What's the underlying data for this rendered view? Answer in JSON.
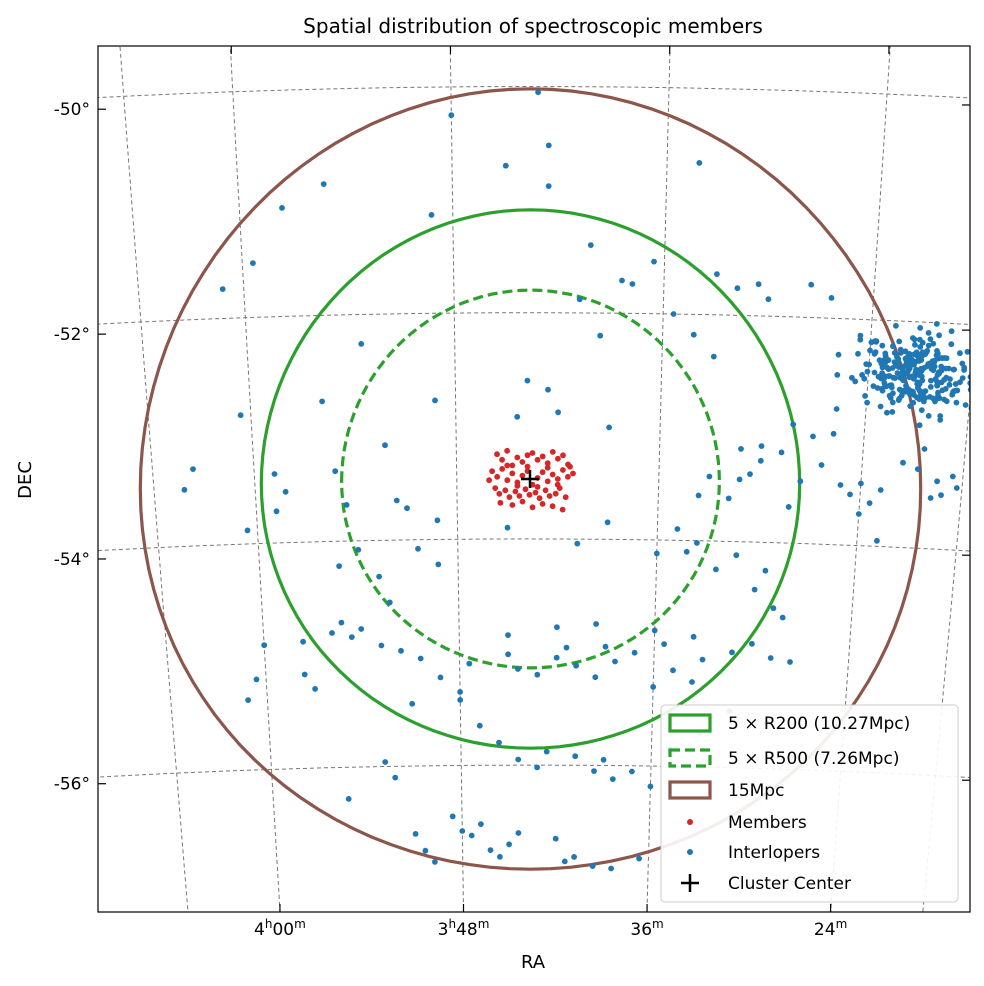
{
  "chart_data": {
    "type": "scatter",
    "title": "Spatial distribution of spectroscopic members",
    "xlabel": "RA",
    "ylabel": "DEC",
    "projection": "sky (RA/DEC, curved graticule)",
    "x_unit": "RA hours",
    "y_unit": "degrees",
    "xlim": [
      4.25,
      3.23
    ],
    "ylim": [
      -57.3,
      -49.8
    ],
    "grid": true,
    "legend_position": "lower-right",
    "x_ticks": [
      {
        "value": 4.0,
        "h": "4",
        "m": "00"
      },
      {
        "value": 3.8,
        "h": "3",
        "m": "48"
      },
      {
        "value": 3.6,
        "h": "",
        "m": "36"
      },
      {
        "value": 3.4,
        "h": "",
        "m": "24"
      }
    ],
    "y_ticks": [
      {
        "value": -50,
        "label": "-50°"
      },
      {
        "value": -52,
        "label": "-52°"
      },
      {
        "value": -54,
        "label": "-54°"
      },
      {
        "value": -56,
        "label": "-56°"
      }
    ],
    "cluster_center": {
      "name": "Cluster Center",
      "ra": 3.7275,
      "dec": -53.47,
      "color": "#000000"
    },
    "circles": [
      {
        "name": "5 × R200 (10.27Mpc)",
        "ra": 3.727,
        "dec": -53.47,
        "radius_deg": 2.38,
        "color": "#2ca02c",
        "style": "solid"
      },
      {
        "name": "5 × R500 (7.26Mpc)",
        "ra": 3.727,
        "dec": -53.47,
        "radius_deg": 1.67,
        "color": "#2ca02c",
        "style": "dashed"
      },
      {
        "name": "15Mpc",
        "ra": 3.727,
        "dec": -53.47,
        "radius_deg": 3.45,
        "color": "#8c564b",
        "style": "solid"
      }
    ],
    "series": [
      {
        "name": "Members",
        "color": "#d62728",
        "points": [
          [
            3.76,
            -53.25
          ],
          [
            3.755,
            -53.3
          ],
          [
            3.75,
            -53.22
          ],
          [
            3.745,
            -53.35
          ],
          [
            3.74,
            -53.28
          ],
          [
            3.735,
            -53.32
          ],
          [
            3.73,
            -53.26
          ],
          [
            3.725,
            -53.24
          ],
          [
            3.72,
            -53.3
          ],
          [
            3.715,
            -53.27
          ],
          [
            3.71,
            -53.33
          ],
          [
            3.705,
            -53.23
          ],
          [
            3.7,
            -53.29
          ],
          [
            3.695,
            -53.26
          ],
          [
            3.69,
            -53.34
          ],
          [
            3.765,
            -53.4
          ],
          [
            3.76,
            -53.45
          ],
          [
            3.755,
            -53.38
          ],
          [
            3.75,
            -53.48
          ],
          [
            3.745,
            -53.42
          ],
          [
            3.74,
            -53.5
          ],
          [
            3.735,
            -53.44
          ],
          [
            3.73,
            -53.4
          ],
          [
            3.725,
            -53.52
          ],
          [
            3.72,
            -53.46
          ],
          [
            3.715,
            -53.41
          ],
          [
            3.71,
            -53.49
          ],
          [
            3.705,
            -53.43
          ],
          [
            3.7,
            -53.47
          ],
          [
            3.695,
            -53.39
          ],
          [
            3.69,
            -53.45
          ],
          [
            3.685,
            -53.42
          ],
          [
            3.762,
            -53.55
          ],
          [
            3.758,
            -53.6
          ],
          [
            3.752,
            -53.57
          ],
          [
            3.748,
            -53.63
          ],
          [
            3.742,
            -53.58
          ],
          [
            3.738,
            -53.62
          ],
          [
            3.732,
            -53.56
          ],
          [
            3.728,
            -53.61
          ],
          [
            3.722,
            -53.59
          ],
          [
            3.718,
            -53.64
          ],
          [
            3.712,
            -53.57
          ],
          [
            3.708,
            -53.62
          ],
          [
            3.702,
            -53.6
          ],
          [
            3.698,
            -53.55
          ],
          [
            3.692,
            -53.63
          ],
          [
            3.757,
            -53.68
          ],
          [
            3.745,
            -53.7
          ],
          [
            3.735,
            -53.67
          ],
          [
            3.725,
            -53.72
          ],
          [
            3.715,
            -53.69
          ],
          [
            3.705,
            -53.71
          ],
          [
            3.695,
            -53.74
          ],
          [
            3.75,
            -53.35
          ],
          [
            3.73,
            -53.36
          ],
          [
            3.71,
            -53.37
          ],
          [
            3.74,
            -53.53
          ],
          [
            3.72,
            -53.54
          ],
          [
            3.7,
            -53.52
          ],
          [
            3.768,
            -53.48
          ],
          [
            3.688,
            -53.36
          ]
        ]
      },
      {
        "name": "Interlopers",
        "color": "#1f77b4",
        "points": [
          [
            3.8,
            -50.25
          ],
          [
            3.72,
            -50.05
          ],
          [
            3.75,
            -50.7
          ],
          [
            3.71,
            -50.52
          ],
          [
            3.71,
            -50.88
          ],
          [
            3.96,
            -51.04
          ],
          [
            3.92,
            -50.84
          ],
          [
            3.82,
            -51.13
          ],
          [
            3.99,
            -51.52
          ],
          [
            4.02,
            -51.74
          ],
          [
            3.89,
            -52.26
          ],
          [
            3.93,
            -52.76
          ],
          [
            3.82,
            -52.77
          ],
          [
            4.01,
            -52.86
          ],
          [
            3.74,
            -52.92
          ],
          [
            3.7,
            -52.88
          ],
          [
            3.65,
            -53.01
          ],
          [
            3.68,
            -51.88
          ],
          [
            3.66,
            -52.2
          ],
          [
            3.64,
            -51.71
          ],
          [
            3.63,
            -51.74
          ],
          [
            3.61,
            -51.54
          ],
          [
            3.55,
            -51.64
          ],
          [
            3.53,
            -51.76
          ],
          [
            3.51,
            -51.72
          ],
          [
            3.5,
            -51.85
          ],
          [
            3.46,
            -51.71
          ],
          [
            3.44,
            -51.82
          ],
          [
            3.59,
            -52.0
          ],
          [
            3.57,
            -52.18
          ],
          [
            3.55,
            -52.37
          ],
          [
            3.67,
            -51.4
          ],
          [
            3.57,
            -50.66
          ],
          [
            3.73,
            -52.6
          ],
          [
            3.71,
            -52.68
          ],
          [
            4.06,
            -53.32
          ],
          [
            4.07,
            -53.5
          ],
          [
            3.98,
            -53.39
          ],
          [
            3.97,
            -53.55
          ],
          [
            3.92,
            -53.38
          ],
          [
            3.91,
            -53.68
          ],
          [
            3.87,
            -53.16
          ],
          [
            3.86,
            -53.65
          ],
          [
            3.85,
            -53.72
          ],
          [
            3.82,
            -53.83
          ],
          [
            3.98,
            -53.72
          ],
          [
            4.01,
            -53.88
          ],
          [
            3.75,
            -53.9
          ],
          [
            3.65,
            -53.85
          ],
          [
            3.55,
            -53.43
          ],
          [
            3.56,
            -53.6
          ],
          [
            3.52,
            -53.45
          ],
          [
            3.53,
            -53.62
          ],
          [
            3.51,
            -53.4
          ],
          [
            3.5,
            -53.28
          ],
          [
            3.52,
            -53.18
          ],
          [
            3.5,
            -53.15
          ],
          [
            3.92,
            -54.22
          ],
          [
            3.9,
            -54.08
          ],
          [
            3.88,
            -54.32
          ],
          [
            3.87,
            -54.55
          ],
          [
            3.84,
            -54.08
          ],
          [
            3.82,
            -54.22
          ],
          [
            3.68,
            -54.04
          ],
          [
            3.6,
            -54.12
          ],
          [
            3.56,
            -54.02
          ],
          [
            3.54,
            -54.25
          ],
          [
            3.52,
            -54.12
          ],
          [
            3.5,
            -54.42
          ],
          [
            3.48,
            -54.58
          ],
          [
            3.47,
            -54.66
          ],
          [
            4.0,
            -54.9
          ],
          [
            3.96,
            -54.88
          ],
          [
            3.93,
            -54.81
          ],
          [
            3.92,
            -54.72
          ],
          [
            3.91,
            -54.85
          ],
          [
            3.9,
            -54.78
          ],
          [
            3.88,
            -54.93
          ],
          [
            3.86,
            -54.98
          ],
          [
            3.84,
            -55.05
          ],
          [
            3.82,
            -55.22
          ],
          [
            3.8,
            -55.35
          ],
          [
            3.75,
            -55.02
          ],
          [
            3.74,
            -55.15
          ],
          [
            3.72,
            -55.2
          ],
          [
            3.7,
            -55.05
          ],
          [
            3.69,
            -54.96
          ],
          [
            3.68,
            -55.12
          ],
          [
            3.66,
            -55.22
          ],
          [
            3.65,
            -54.95
          ],
          [
            3.64,
            -55.08
          ],
          [
            3.62,
            -55.0
          ],
          [
            3.6,
            -54.8
          ],
          [
            3.59,
            -54.92
          ],
          [
            3.58,
            -55.15
          ],
          [
            3.56,
            -54.85
          ],
          [
            3.55,
            -55.05
          ],
          [
            3.79,
            -55.1
          ],
          [
            3.75,
            -54.85
          ],
          [
            3.7,
            -54.78
          ],
          [
            3.66,
            -54.75
          ],
          [
            3.6,
            -55.3
          ],
          [
            3.56,
            -55.25
          ],
          [
            3.52,
            -54.98
          ],
          [
            3.5,
            -54.9
          ],
          [
            3.48,
            -55.02
          ],
          [
            3.46,
            -55.05
          ],
          [
            3.52,
            -55.5
          ],
          [
            3.48,
            -55.6
          ],
          [
            3.55,
            -55.7
          ],
          [
            3.58,
            -55.85
          ],
          [
            3.62,
            -56.05
          ],
          [
            3.64,
            -56.12
          ],
          [
            3.96,
            -55.17
          ],
          [
            3.95,
            -55.3
          ],
          [
            4.01,
            -55.2
          ],
          [
            4.02,
            -55.38
          ],
          [
            3.85,
            -55.45
          ],
          [
            3.8,
            -55.42
          ],
          [
            3.78,
            -55.65
          ],
          [
            3.76,
            -55.8
          ],
          [
            3.74,
            -55.95
          ],
          [
            3.72,
            -56.02
          ],
          [
            3.71,
            -55.88
          ],
          [
            3.68,
            -55.92
          ],
          [
            3.66,
            -56.05
          ],
          [
            3.65,
            -55.95
          ],
          [
            3.6,
            -56.18
          ],
          [
            3.88,
            -55.96
          ],
          [
            3.87,
            -56.1
          ],
          [
            3.92,
            -56.28
          ],
          [
            3.81,
            -56.45
          ],
          [
            3.8,
            -56.58
          ],
          [
            3.79,
            -56.62
          ],
          [
            3.78,
            -56.52
          ],
          [
            3.77,
            -56.75
          ],
          [
            3.76,
            -56.81
          ],
          [
            3.75,
            -56.7
          ],
          [
            3.84,
            -56.75
          ],
          [
            3.83,
            -56.85
          ],
          [
            3.85,
            -56.6
          ],
          [
            3.74,
            -56.6
          ],
          [
            3.7,
            -56.65
          ],
          [
            3.68,
            -56.81
          ],
          [
            3.66,
            -56.89
          ],
          [
            3.64,
            -56.91
          ],
          [
            3.69,
            -56.85
          ],
          [
            3.61,
            -56.82
          ],
          [
            3.58,
            -53.9
          ],
          [
            3.57,
            -54.1
          ],
          [
            3.49,
            -54.25
          ],
          [
            3.47,
            -53.68
          ],
          [
            3.46,
            -53.45
          ],
          [
            3.45,
            -53.05
          ],
          [
            3.48,
            -53.2
          ],
          [
            3.44,
            -53.3
          ],
          [
            3.47,
            -52.95
          ],
          [
            3.43,
            -53.02
          ],
          [
            3.42,
            -53.47
          ],
          [
            3.41,
            -53.55
          ],
          [
            3.4,
            -53.72
          ],
          [
            3.39,
            -53.62
          ],
          [
            3.4,
            -53.45
          ],
          [
            3.38,
            -53.5
          ],
          [
            3.43,
            -52.32
          ],
          [
            3.41,
            -52.18
          ],
          [
            3.39,
            -52.5
          ],
          [
            3.37,
            -52.28
          ],
          [
            3.36,
            -52.6
          ],
          [
            3.35,
            -52.43
          ],
          [
            3.34,
            -53.12
          ],
          [
            3.345,
            -53.3
          ],
          [
            3.33,
            -53.55
          ],
          [
            3.32,
            -53.52
          ],
          [
            3.325,
            -53.4
          ],
          [
            3.31,
            -53.35
          ],
          [
            3.305,
            -53.45
          ],
          [
            3.36,
            -53.25
          ],
          [
            3.38,
            -53.95
          ]
        ]
      }
    ],
    "overdensity": {
      "ra": 3.355,
      "dec": -52.45,
      "spread_ra": 0.045,
      "spread_dec": 0.32,
      "count": 260
    }
  }
}
